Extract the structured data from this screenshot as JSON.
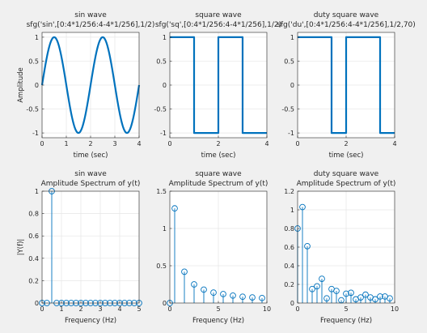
{
  "window": {
    "background": "#f0f0f0"
  },
  "colors": {
    "line": "#0072bd",
    "axes_bg": "#ffffff",
    "grid": "#e6e6e6",
    "axis": "#262626"
  },
  "chart_data": [
    {
      "type": "line",
      "title": [
        "sin wave",
        "sfg('sin',[0:4*1/256:4-4*1/256],1/2)"
      ],
      "xlabel": "time (sec)",
      "ylabel": "Amplitude",
      "xlim": [
        0,
        4
      ],
      "ylim": [
        -1.1,
        1.1
      ],
      "xticks": [
        0,
        1,
        2,
        3,
        4
      ],
      "xticklabels": [
        "0",
        "1",
        "2",
        "3",
        "4"
      ],
      "yticks": [
        -1,
        -0.5,
        0,
        0.5,
        1
      ],
      "yticklabels": [
        "-1",
        "-0.5",
        "0",
        "0.5",
        "1"
      ],
      "grid": true,
      "series": [
        {
          "kind": "sine",
          "frequency_hz": 0.5,
          "amplitude": 1
        }
      ]
    },
    {
      "type": "line",
      "title": [
        "square wave",
        "sfg('sq',[0:4*1/256:4-4*1/256],1/2)"
      ],
      "xlabel": "time (sec)",
      "ylabel": "",
      "xlim": [
        0,
        4
      ],
      "ylim": [
        -1.1,
        1.1
      ],
      "xticks": [
        0,
        2,
        4
      ],
      "xticklabels": [
        "0",
        "2",
        "4"
      ],
      "yticks": [
        -1,
        -0.5,
        0,
        0.5,
        1
      ],
      "yticklabels": [
        "-1",
        "-0.5",
        "0",
        "0.5",
        "1"
      ],
      "grid": true,
      "series": [
        {
          "kind": "square",
          "frequency_hz": 0.5,
          "duty_percent": 50
        }
      ]
    },
    {
      "type": "line",
      "title": [
        "duty square wave",
        "sfg('du',[0:4*1/256:4-4*1/256],1/2,70)"
      ],
      "xlabel": "time (sec)",
      "ylabel": "",
      "xlim": [
        0,
        4
      ],
      "ylim": [
        -1.1,
        1.1
      ],
      "xticks": [
        0,
        2,
        4
      ],
      "xticklabels": [
        "0",
        "2",
        "4"
      ],
      "yticks": [
        -1,
        -0.5,
        0,
        0.5,
        1
      ],
      "yticklabels": [
        "-1",
        "-0.5",
        "0",
        "0.5",
        "1"
      ],
      "grid": true,
      "series": [
        {
          "kind": "square",
          "frequency_hz": 0.5,
          "duty_percent": 70
        }
      ]
    },
    {
      "type": "stem",
      "title": [
        "sin wave",
        "Amplitude Spectrum of y(t)"
      ],
      "xlabel": "Frequency (Hz)",
      "ylabel": "|Y(f)|",
      "xlim": [
        0,
        5
      ],
      "ylim": [
        0,
        1
      ],
      "xticks": [
        0,
        1,
        2,
        3,
        4,
        5
      ],
      "xticklabels": [
        "0",
        "1",
        "2",
        "3",
        "4",
        "5"
      ],
      "yticks": [
        0,
        0.2,
        0.4,
        0.6,
        0.8,
        1
      ],
      "yticklabels": [
        "0",
        "0.2",
        "0.4",
        "0.6",
        "0.8",
        "1"
      ],
      "grid": true,
      "x": [
        0,
        0.25,
        0.5,
        0.75,
        1,
        1.25,
        1.5,
        1.75,
        2,
        2.25,
        2.5,
        2.75,
        3,
        3.25,
        3.5,
        3.75,
        4,
        4.25,
        4.5,
        4.75,
        5
      ],
      "y": [
        0,
        0,
        1,
        0,
        0,
        0,
        0,
        0,
        0,
        0,
        0,
        0,
        0,
        0,
        0,
        0,
        0,
        0,
        0,
        0,
        0
      ]
    },
    {
      "type": "stem",
      "title": [
        "square wave",
        "Amplitude Spectrum of y(t)"
      ],
      "xlabel": "Frequency (Hz)",
      "ylabel": "",
      "xlim": [
        0,
        10
      ],
      "ylim": [
        0,
        1.5
      ],
      "xticks": [
        0,
        5,
        10
      ],
      "xticklabels": [
        "0",
        "5",
        "10"
      ],
      "yticks": [
        0,
        0.5,
        1,
        1.5
      ],
      "yticklabels": [
        "0",
        "0.5",
        "1",
        "1.5"
      ],
      "grid": true,
      "x": [
        0,
        0.5,
        1.5,
        2.5,
        3.5,
        4.5,
        5.5,
        6.5,
        7.5,
        8.5,
        9.5
      ],
      "y": [
        0,
        1.27,
        0.42,
        0.25,
        0.18,
        0.14,
        0.12,
        0.1,
        0.085,
        0.075,
        0.067
      ]
    },
    {
      "type": "stem",
      "title": [
        "duty square wave",
        "Amplitude Spectrum of y(t)"
      ],
      "xlabel": "Frequency (Hz)",
      "ylabel": "",
      "xlim": [
        0,
        10
      ],
      "ylim": [
        0,
        1.2
      ],
      "xticks": [
        0,
        5,
        10
      ],
      "xticklabels": [
        "0",
        "5",
        "10"
      ],
      "yticks": [
        0,
        0.2,
        0.4,
        0.6,
        0.8,
        1,
        1.2
      ],
      "yticklabels": [
        "0",
        "0.2",
        "0.4",
        "0.6",
        "0.8",
        "1",
        "1.2"
      ],
      "grid": true,
      "x": [
        0,
        0.5,
        1,
        1.5,
        2,
        2.5,
        3,
        3.5,
        4,
        4.5,
        5,
        5.5,
        6,
        6.5,
        7,
        7.5,
        8,
        8.5,
        9,
        9.5
      ],
      "y": [
        0.8,
        1.03,
        0.61,
        0.15,
        0.18,
        0.26,
        0.05,
        0.15,
        0.13,
        0.03,
        0.1,
        0.11,
        0.04,
        0.06,
        0.09,
        0.06,
        0.04,
        0.07,
        0.07,
        0.05
      ]
    }
  ]
}
